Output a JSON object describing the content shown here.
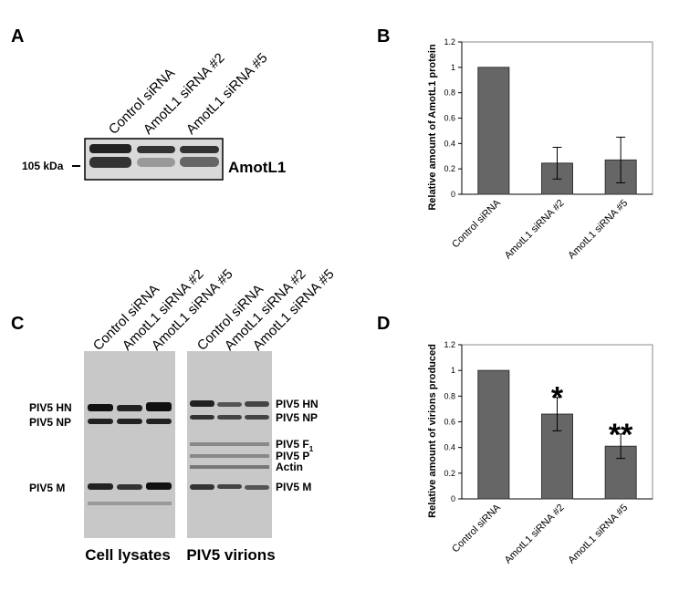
{
  "panel_labels": [
    "A",
    "B",
    "C",
    "D"
  ],
  "blot_a": {
    "lanes": [
      "Control siRNA",
      "AmotL1 siRNA #2",
      "AmotL1 siRNA #5"
    ],
    "marker": "105 kDa",
    "band_label": "AmotL1"
  },
  "blot_c": {
    "lysate_lanes": [
      "Control siRNA",
      "AmotL1 siRNA #2",
      "AmotL1 siRNA #5"
    ],
    "virion_lanes": [
      "Control siRNA",
      "AmotL1 siRNA #2",
      "AmotL1 siRNA #5"
    ],
    "lysate_bands": [
      "PIV5 HN",
      "PIV5 NP",
      "PIV5 M"
    ],
    "virion_bands": [
      {
        "text": "PIV5 HN"
      },
      {
        "text": "PIV5 NP"
      },
      {
        "text": "PIV5 F",
        "sub": "1"
      },
      {
        "text": "PIV5 P"
      },
      {
        "text": "Actin"
      },
      {
        "text": "PIV5 M"
      }
    ],
    "lysate_caption": "Cell lysates",
    "virion_caption": "PIV5 virions"
  },
  "chart_data": [
    {
      "type": "bar",
      "y_label": "Relative amount of AmotL1 protein",
      "categories": [
        "Control siRNA",
        "AmotL1 siRNA #2",
        "AmotL1 siRNA #5"
      ],
      "values": [
        1,
        0.245,
        0.27
      ],
      "errors": [
        0,
        0.125,
        0.18
      ],
      "color": "#666666",
      "ylim": [
        0,
        1.2
      ],
      "yticks": [
        0,
        0.2,
        0.4,
        0.6,
        0.8,
        1,
        1.2
      ]
    },
    {
      "type": "bar",
      "y_label": "Relative amount of virions produced",
      "categories": [
        "Control siRNA",
        "AmotL1 siRNA #2",
        "AmotL1 siRNA #5"
      ],
      "values": [
        1,
        0.66,
        0.41
      ],
      "errors": [
        0,
        0.13,
        0.095
      ],
      "color": "#666666",
      "significance": [
        null,
        "*",
        "**"
      ],
      "ylim": [
        0,
        1.2
      ],
      "yticks": [
        0,
        0.2,
        0.4,
        0.6,
        0.8,
        1,
        1.2
      ]
    }
  ]
}
